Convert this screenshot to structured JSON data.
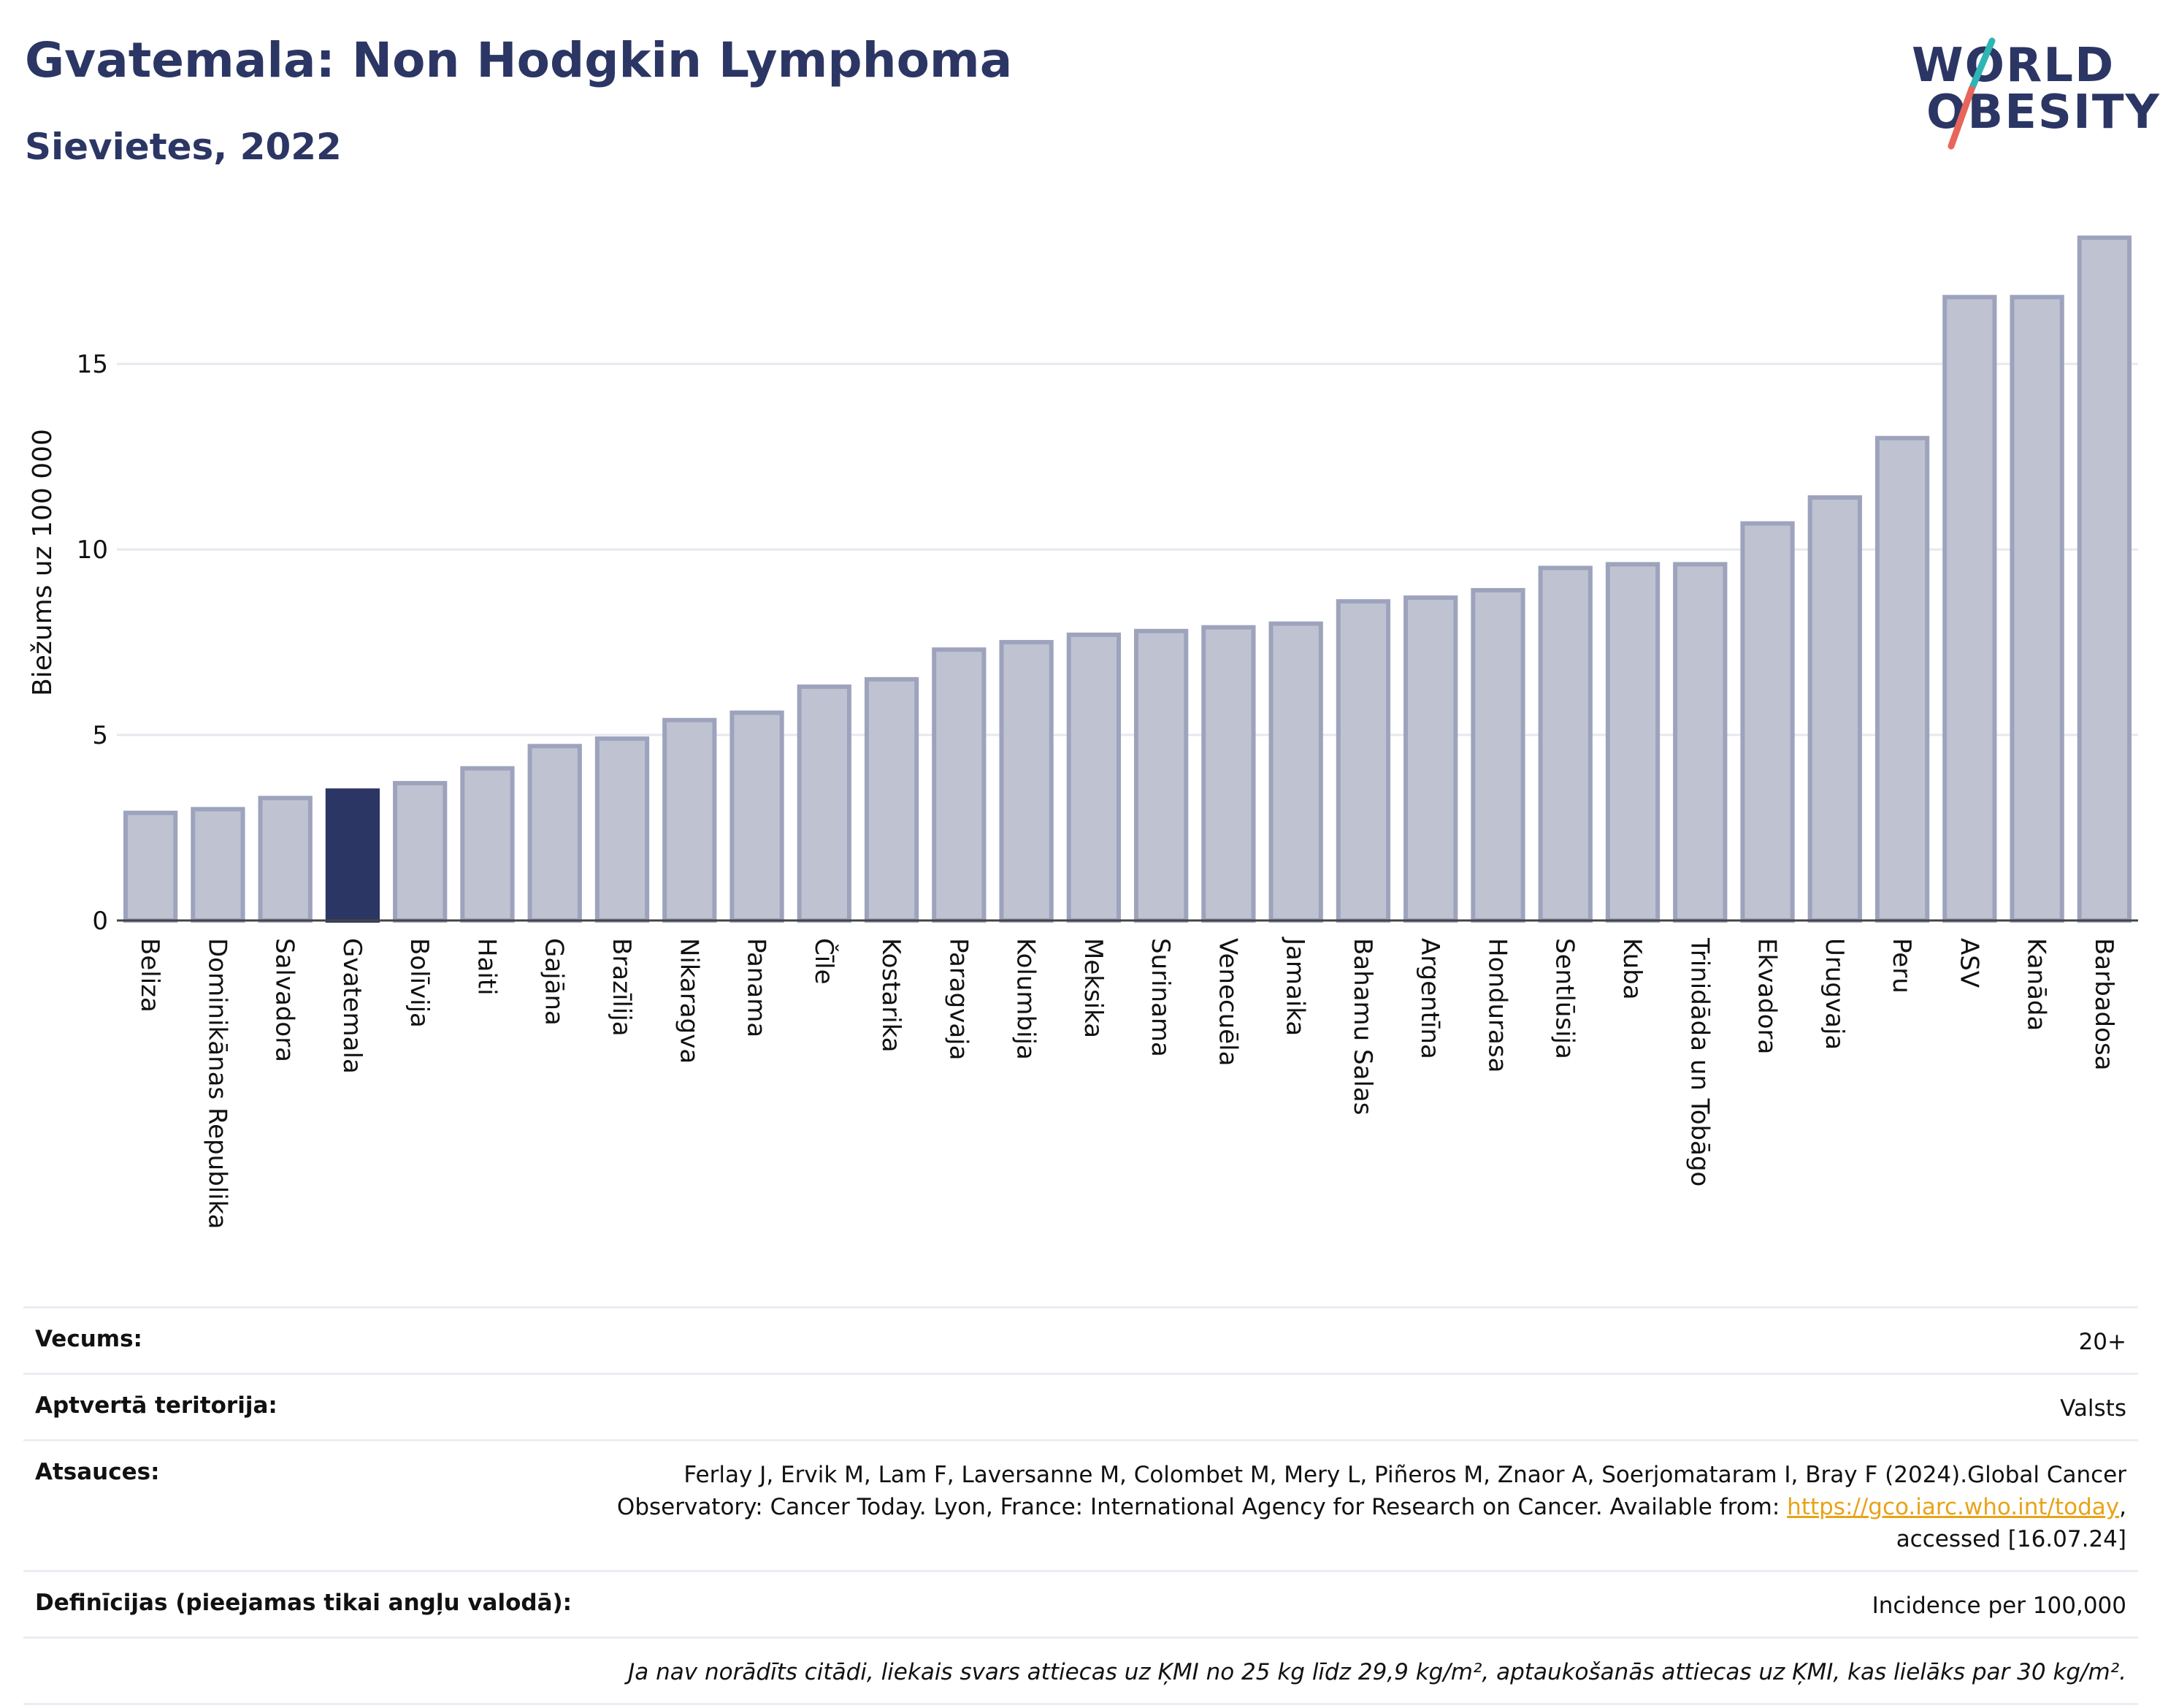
{
  "header": {
    "title": "Gvatemala: Non Hodgkin Lymphoma",
    "subtitle": "Sievietes, 2022"
  },
  "logo": {
    "line1": "WORLD",
    "line2": "OBESITY",
    "accent_colors": [
      "#2fb5b5",
      "#e8655a"
    ]
  },
  "colors": {
    "highlight_bar": "#2b3664",
    "other_bar": "#bfc3d1",
    "other_bar_stroke": "#9ea3bd"
  },
  "chart_data": {
    "type": "bar",
    "ylabel": "Biežums uz 100 000",
    "xlabel": "",
    "ylim": [
      0,
      18.9
    ],
    "yticks": [
      0,
      5,
      10,
      15
    ],
    "grid": true,
    "highlight": "Gvatemala",
    "categories": [
      "Beliza",
      "Dominikānas Republika",
      "Salvadora",
      "Gvatemala",
      "Bolīvija",
      "Haiti",
      "Gajāna",
      "Brazīlija",
      "Nikaragva",
      "Panama",
      "Čīle",
      "Kostarika",
      "Paragvaja",
      "Kolumbija",
      "Meksika",
      "Surinama",
      "Venecuēla",
      "Jamaika",
      "Bahamu Salas",
      "Argentīna",
      "Hondurasa",
      "Sentlūsija",
      "Kuba",
      "Trinidāda un Tobāgo",
      "Ekvadora",
      "Urugvaja",
      "Peru",
      "ASV",
      "Kanāda",
      "Barbadosa"
    ],
    "values": [
      2.9,
      3.0,
      3.3,
      3.5,
      3.7,
      4.1,
      4.7,
      4.9,
      5.4,
      5.6,
      6.3,
      6.5,
      7.3,
      7.5,
      7.7,
      7.8,
      7.9,
      8.0,
      8.6,
      8.7,
      8.9,
      9.5,
      9.6,
      9.6,
      10.7,
      11.4,
      13.0,
      16.8,
      16.8,
      18.4
    ]
  },
  "info": {
    "age_label": "Vecums:",
    "age_value": "20+",
    "territory_label": "Aptvertā teritorija:",
    "territory_value": "Valsts",
    "refs_label": "Atsauces:",
    "refs_text_1": "Ferlay J, Ervik M, Lam F, Laversanne M, Colombet M, Mery L, Piñeros M, Znaor A, Soerjomataram I, Bray F (2024).Global Cancer Observatory: Cancer Today. Lyon, France: International Agency for Research on Cancer. Available from: ",
    "refs_link": "https://gco.iarc.who.int/today",
    "refs_text_2": ", accessed [16.07.24]",
    "definitions_label": "Definīcijas (pieejamas tikai angļu valodā):",
    "definitions_value": "Incidence per 100,000",
    "note": "Ja nav norādīts citādi, liekais svars attiecas uz ĶMI no 25 kg līdz 29,9 kg/m², aptaukošanās attiecas uz ĶMI, kas lielāks par 30 kg/m²."
  }
}
